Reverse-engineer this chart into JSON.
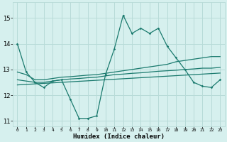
{
  "xlabel": "Humidex (Indice chaleur)",
  "background_color": "#d6f0ee",
  "grid_color": "#b8dbd8",
  "line_color": "#1a7a6e",
  "xlim": [
    -0.5,
    23.5
  ],
  "ylim": [
    10.8,
    15.6
  ],
  "yticks": [
    11,
    12,
    13,
    14,
    15
  ],
  "xtick_labels": [
    "0",
    "1",
    "2",
    "3",
    "4",
    "5",
    "6",
    "7",
    "8",
    "9",
    "10",
    "11",
    "12",
    "13",
    "14",
    "15",
    "16",
    "17",
    "18",
    "19",
    "20",
    "21",
    "22",
    "23"
  ],
  "series1": [
    14.0,
    12.9,
    12.5,
    12.3,
    12.55,
    12.6,
    11.85,
    11.1,
    11.1,
    11.2,
    12.8,
    13.8,
    15.1,
    14.4,
    14.6,
    14.4,
    14.6,
    13.9,
    13.45,
    13.0,
    12.5,
    12.35,
    12.3,
    12.6
  ],
  "series2": [
    12.9,
    12.8,
    12.6,
    12.6,
    12.65,
    12.7,
    12.72,
    12.75,
    12.78,
    12.8,
    12.85,
    12.9,
    12.95,
    13.0,
    13.05,
    13.1,
    13.15,
    13.2,
    13.3,
    13.35,
    13.4,
    13.45,
    13.5,
    13.5
  ],
  "series3": [
    12.6,
    12.55,
    12.5,
    12.5,
    12.55,
    12.6,
    12.63,
    12.65,
    12.68,
    12.7,
    12.75,
    12.8,
    12.82,
    12.85,
    12.87,
    12.9,
    12.93,
    12.95,
    12.97,
    13.0,
    13.02,
    13.05,
    13.05,
    13.08
  ],
  "series4": [
    12.4,
    12.42,
    12.44,
    12.46,
    12.48,
    12.5,
    12.52,
    12.54,
    12.56,
    12.58,
    12.6,
    12.62,
    12.64,
    12.66,
    12.68,
    12.7,
    12.72,
    12.74,
    12.76,
    12.78,
    12.8,
    12.82,
    12.84,
    12.86
  ]
}
